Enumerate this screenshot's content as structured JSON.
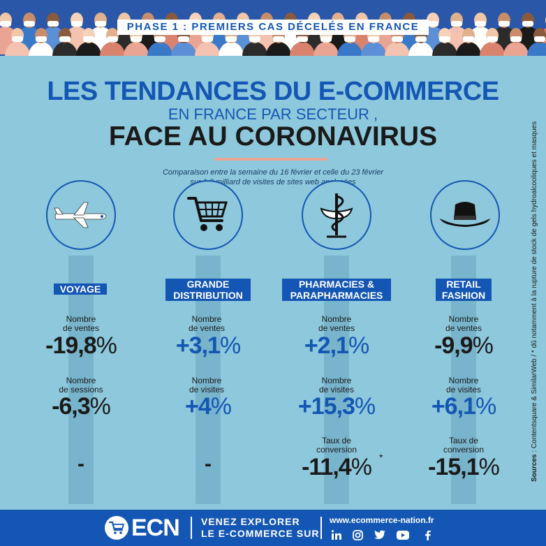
{
  "header": {
    "phase_label": "PHASE 1",
    "phase_text": " : PREMIERS CAS DÉCELÉS EN FRANCE"
  },
  "title": {
    "line1": "LES TENDANCES DU E-COMMERCE",
    "line2": "EN FRANCE PAR SECTEUR ,",
    "line3": "FACE AU CORONAVIRUS",
    "subtitle_line1": "Comparaison entre la semaine du 16 février et celle du 23 février",
    "subtitle_line2": "sur 1,8 milliard de visites de sites web analysées"
  },
  "sectors": [
    {
      "icon": "airplane-icon",
      "label_line1": "VOYAGE",
      "label_line2": "",
      "m1_label1": "Nombre",
      "m1_label2": "de ventes",
      "m1_value": "-19,8",
      "m1_pct": "%",
      "m2_label1": "Nombre",
      "m2_label2": "de sessions",
      "m2_value": "-6,3",
      "m2_pct": "%",
      "m3_dash": "-"
    },
    {
      "icon": "shopping-cart-icon",
      "label_line1": "GRANDE",
      "label_line2": "DISTRIBUTION",
      "m1_label1": "Nombre",
      "m1_label2": "de ventes",
      "m1_value": "+3,1",
      "m1_pct": "%",
      "m2_label1": "Nombre",
      "m2_label2": "de visites",
      "m2_value": "+4",
      "m2_pct": "%",
      "m3_dash": "-"
    },
    {
      "icon": "pharmacy-caduceus-icon",
      "label_line1": "PHARMACIES &",
      "label_line2": "PARAPHARMACIES",
      "m1_label1": "Nombre",
      "m1_label2": "de ventes",
      "m1_value": "+2,1",
      "m1_pct": "%",
      "m2_label1": "Nombre",
      "m2_label2": "de visites",
      "m2_value": "+15,3",
      "m2_pct": "%",
      "m3_label1": "Taux de",
      "m3_label2": "conversion",
      "m3_value": "-11,4",
      "m3_pct": "%",
      "m3_asterisk": "*"
    },
    {
      "icon": "hat-icon",
      "label_line1": "RETAIL",
      "label_line2": "FASHION",
      "m1_label1": "Nombre",
      "m1_label2": "de ventes",
      "m1_value": "-9,9",
      "m1_pct": "%",
      "m2_label1": "Nombre",
      "m2_label2": "de visites",
      "m2_value": "+6,1",
      "m2_pct": "%",
      "m3_label1": "Taux de",
      "m3_label2": "conversion",
      "m3_value": "-15,1",
      "m3_pct": "%"
    }
  ],
  "sources": {
    "label": "Sources",
    "text": " : Contentsquare & SimilarWeb   /   * dû notamment à la rupture de stock de gels hydroalcooliques et masques"
  },
  "footer": {
    "logo": "ECN",
    "cta_line1": "VENEZ EXPLORER",
    "cta_line2": "LE E-COMMERCE SUR",
    "url": "www.ecommerce-nation.fr",
    "social": [
      "linkedin-icon",
      "instagram-icon",
      "twitter-icon",
      "youtube-icon",
      "facebook-icon"
    ]
  },
  "colors": {
    "background": "#8ec8dc",
    "brand_blue": "#1456b4",
    "accent_salmon": "#e9a493",
    "dark_text": "#1a1a1a"
  }
}
